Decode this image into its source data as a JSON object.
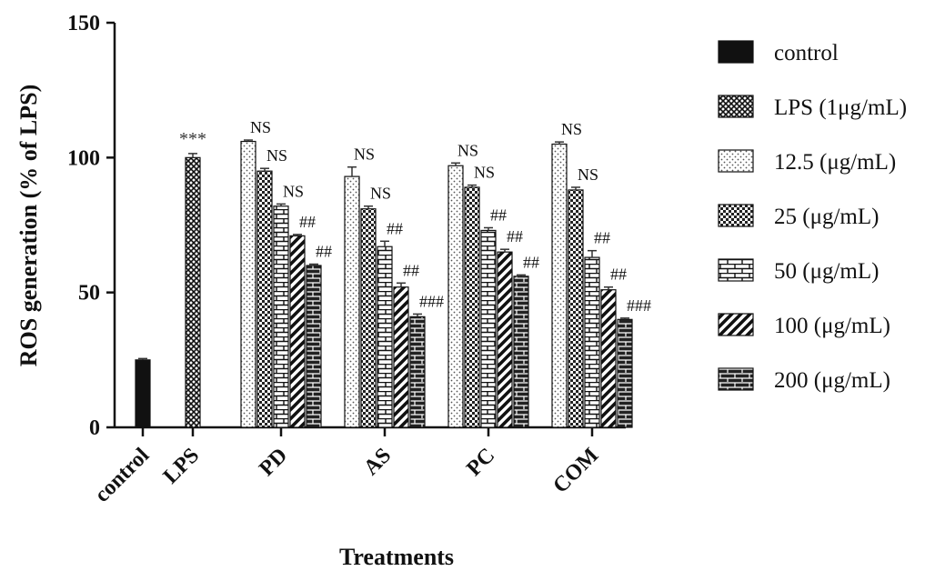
{
  "chart_data": {
    "type": "bar",
    "title": "",
    "xlabel": "Treatments",
    "ylabel": "ROS generation (% of LPS)",
    "ylim": [
      0,
      150
    ],
    "yticks": [
      0,
      50,
      100,
      150
    ],
    "grid": false,
    "legend_position": "right",
    "categories": [
      "control",
      "LPS",
      "PD",
      "AS",
      "PC",
      "COM"
    ],
    "series": [
      {
        "name": "control",
        "pattern": "solid",
        "values": [
          25,
          null,
          null,
          null,
          null,
          null
        ],
        "errors": [
          0.5,
          null,
          null,
          null,
          null,
          null
        ],
        "annotations": [
          "",
          "",
          "",
          "",
          "",
          ""
        ]
      },
      {
        "name": "LPS (1μg/mL)",
        "pattern": "crosshatch",
        "values": [
          null,
          100,
          null,
          null,
          null,
          null
        ],
        "errors": [
          null,
          1.5,
          null,
          null,
          null,
          null
        ],
        "annotations": [
          "",
          "***",
          "",
          "",
          "",
          ""
        ]
      },
      {
        "name": "12.5 (μg/mL)",
        "pattern": "dots",
        "values": [
          null,
          null,
          106,
          93,
          97,
          105
        ],
        "errors": [
          null,
          null,
          0.5,
          3.5,
          1,
          0.8
        ],
        "annotations": [
          "",
          "",
          "NS",
          "NS",
          "NS",
          "NS"
        ]
      },
      {
        "name": "25 (μg/mL)",
        "pattern": "checker",
        "values": [
          null,
          null,
          95,
          81,
          89,
          88
        ],
        "errors": [
          null,
          null,
          1,
          1,
          0.8,
          1
        ],
        "annotations": [
          "",
          "",
          "NS",
          "NS",
          "NS",
          "NS"
        ]
      },
      {
        "name": "50 (μg/mL)",
        "pattern": "brick-light",
        "values": [
          null,
          null,
          82,
          67,
          73,
          63
        ],
        "errors": [
          null,
          null,
          0.8,
          2,
          1,
          2.5
        ],
        "annotations": [
          "",
          "",
          "NS",
          "##",
          "##",
          "##"
        ]
      },
      {
        "name": "100 (μg/mL)",
        "pattern": "diagonal",
        "values": [
          null,
          null,
          71,
          52,
          65,
          51
        ],
        "errors": [
          null,
          null,
          0.5,
          1.5,
          1,
          1
        ],
        "annotations": [
          "",
          "",
          "##",
          "##",
          "##",
          "##"
        ]
      },
      {
        "name": "200 (μg/mL)",
        "pattern": "brick-dark",
        "values": [
          null,
          null,
          60,
          41,
          56,
          40
        ],
        "errors": [
          null,
          null,
          0.5,
          1,
          0.5,
          0.5
        ],
        "annotations": [
          "",
          "",
          "##",
          "###",
          "##",
          "###"
        ]
      }
    ]
  }
}
